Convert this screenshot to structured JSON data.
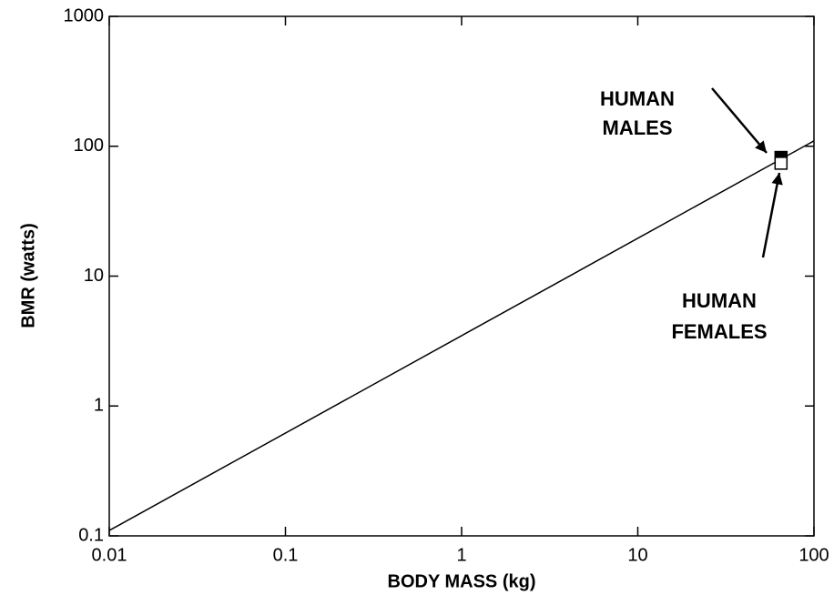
{
  "chart_data": {
    "type": "line",
    "x_label": "BODY MASS (kg)",
    "y_label": "BMR (watts)",
    "x_log": true,
    "y_log": true,
    "xlim": [
      0.01,
      100
    ],
    "ylim": [
      0.1,
      1000
    ],
    "xticks": [
      0.01,
      0.1,
      1,
      10,
      100
    ],
    "yticks": [
      0.1,
      1,
      10,
      100,
      1000
    ],
    "series": [
      {
        "type": "line",
        "color": "#000000",
        "x": [
          0.01,
          100
        ],
        "values": [
          0.11,
          110
        ]
      },
      {
        "type": "scatter",
        "color": "#000000",
        "fill": "#000000",
        "x": [
          65
        ],
        "values": [
          82
        ]
      },
      {
        "type": "scatter",
        "color": "#000000",
        "fill": "#ffffff",
        "x": [
          65
        ],
        "values": [
          74
        ]
      }
    ],
    "annotations": [
      {
        "lines": [
          "HUMAN",
          "MALES"
        ]
      },
      {
        "lines": [
          "HUMAN",
          "FEMALES"
        ]
      }
    ]
  }
}
